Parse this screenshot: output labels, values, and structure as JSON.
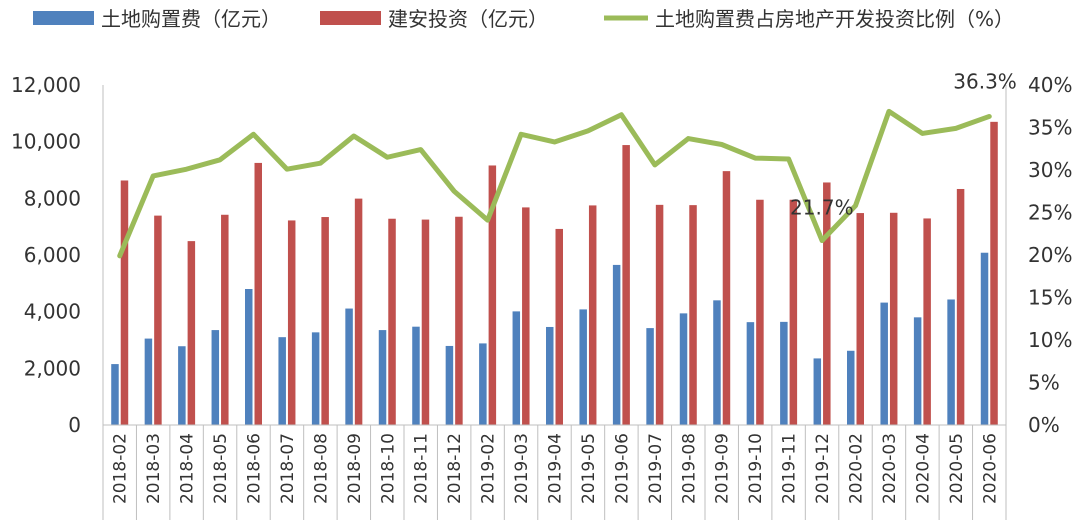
{
  "chart_data": {
    "type": "bar",
    "categories": [
      "2018-02",
      "2018-03",
      "2018-04",
      "2018-05",
      "2018-06",
      "2018-07",
      "2018-08",
      "2018-09",
      "2018-10",
      "2018-11",
      "2018-12",
      "2019-02",
      "2019-03",
      "2019-04",
      "2019-05",
      "2019-06",
      "2019-07",
      "2019-08",
      "2019-09",
      "2019-10",
      "2019-11",
      "2019-12",
      "2020-02",
      "2020-03",
      "2020-04",
      "2020-05",
      "2020-06"
    ],
    "series": [
      {
        "name": "土地购置费（亿元）",
        "type": "bar",
        "axis": "left",
        "color": "#4f81bd",
        "values": [
          2150,
          3050,
          2780,
          3350,
          4800,
          3100,
          3270,
          4110,
          3350,
          3470,
          2790,
          2880,
          4010,
          3460,
          4080,
          5650,
          3420,
          3940,
          4400,
          3630,
          3640,
          2350,
          2620,
          4320,
          3800,
          4430,
          6080
        ]
      },
      {
        "name": "建安投资（亿元）",
        "type": "bar",
        "axis": "left",
        "color": "#c0504d",
        "values": [
          8630,
          7390,
          6490,
          7420,
          9250,
          7220,
          7340,
          7990,
          7280,
          7250,
          7350,
          9160,
          7680,
          6920,
          7750,
          9880,
          7770,
          7760,
          8960,
          7950,
          7950,
          8560,
          7480,
          7490,
          7290,
          8330,
          10700
        ]
      },
      {
        "name": "土地购置费占房地产开发投资比例（%）",
        "type": "line",
        "axis": "right",
        "color": "#9bbb59",
        "values": [
          19.9,
          29.3,
          30.1,
          31.2,
          34.2,
          30.1,
          30.8,
          34.0,
          31.5,
          32.4,
          27.5,
          24.1,
          34.2,
          33.3,
          34.6,
          36.5,
          30.6,
          33.7,
          33.0,
          31.4,
          31.3,
          21.7,
          25.8,
          36.9,
          34.3,
          34.9,
          36.3
        ]
      }
    ],
    "annotations": [
      {
        "category": "2019-12",
        "text": "21.7%"
      },
      {
        "category": "2020-06",
        "text": "36.3%"
      }
    ],
    "ylim": [
      0,
      12000
    ],
    "yticks": [
      "0",
      "2,000",
      "4,000",
      "6,000",
      "8,000",
      "10,000",
      "12,000"
    ],
    "y2lim": [
      0,
      40
    ],
    "y2ticks": [
      "0%",
      "5%",
      "10%",
      "15%",
      "20%",
      "25%",
      "30%",
      "35%",
      "40%"
    ],
    "grid": false,
    "legend_position": "top"
  }
}
